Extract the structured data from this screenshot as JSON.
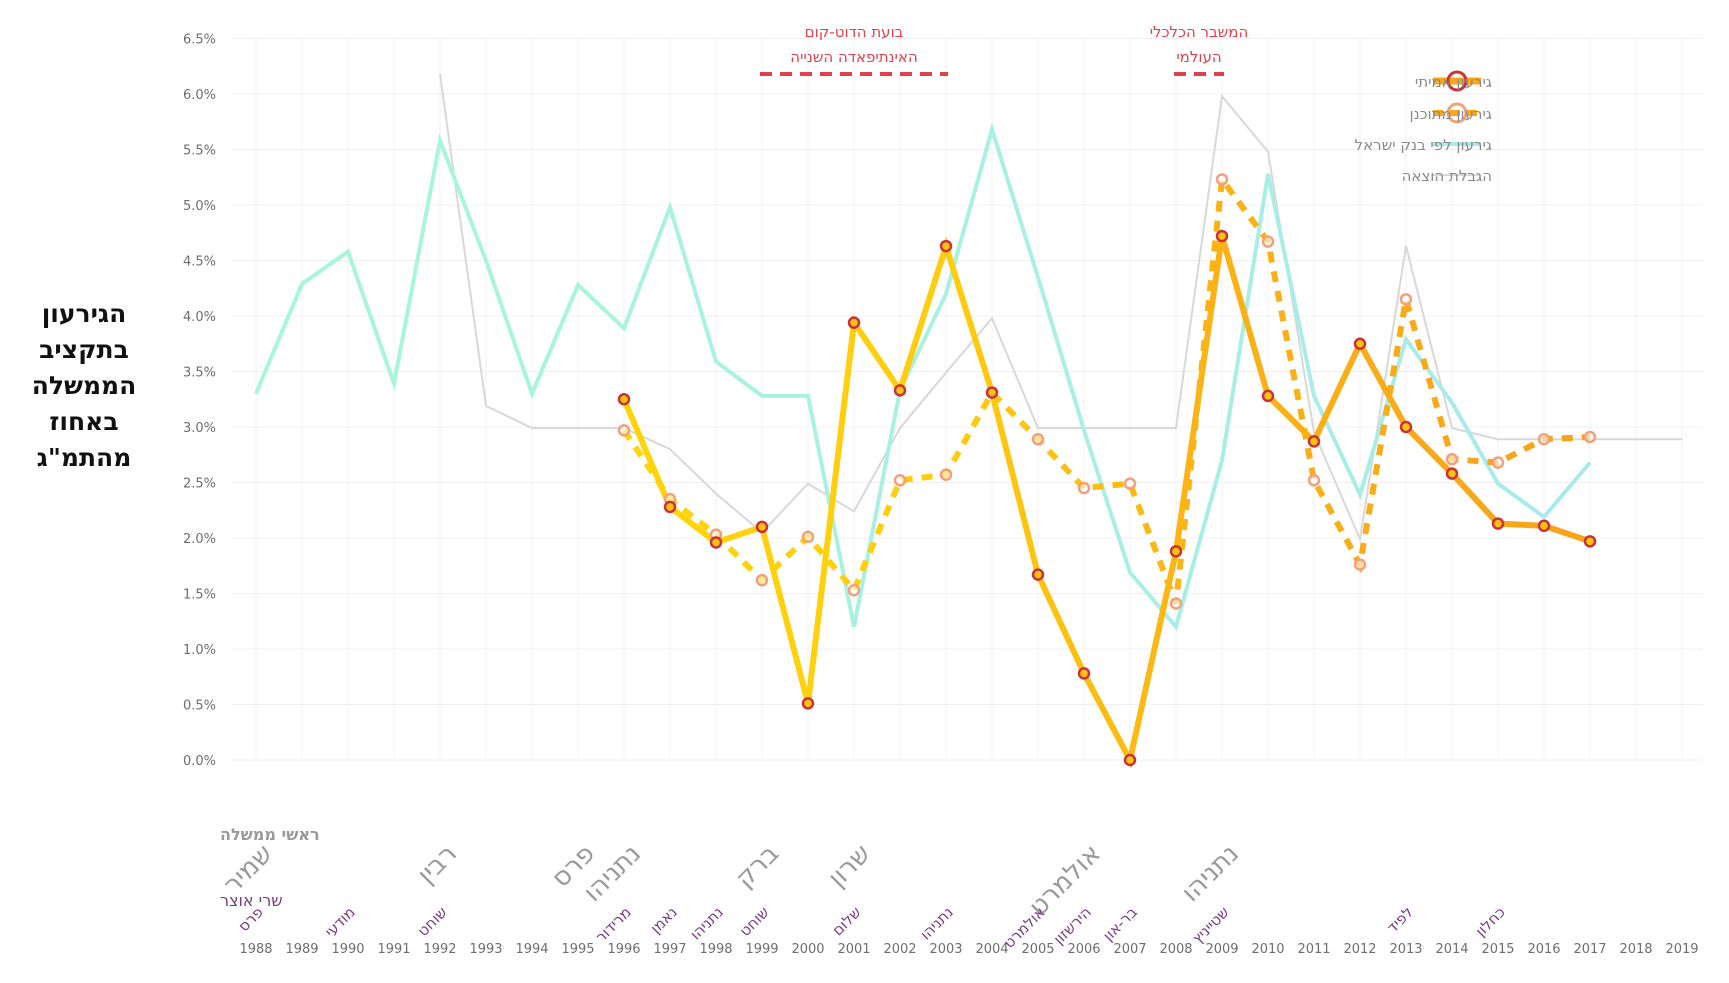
{
  "chart_data": {
    "type": "line",
    "title": "",
    "ylabel": "הגירעון בתקציב הממשלה באחוז מהתמ\"ג",
    "xlabel": "",
    "ylim": [
      0,
      6.5
    ],
    "yticks": [
      "0.0%",
      "0.5%",
      "1.0%",
      "1.5%",
      "2.0%",
      "2.5%",
      "3.0%",
      "3.5%",
      "4.0%",
      "4.5%",
      "5.0%",
      "5.5%",
      "6.0%",
      "6.5%"
    ],
    "ytick_values": [
      0,
      0.5,
      1,
      1.5,
      2,
      2.5,
      3,
      3.5,
      4,
      4.5,
      5,
      5.5,
      6,
      6.5
    ],
    "x": [
      1988,
      1989,
      1990,
      1991,
      1992,
      1993,
      1994,
      1995,
      1996,
      1997,
      1998,
      1999,
      2000,
      2001,
      2002,
      2003,
      2004,
      2005,
      2006,
      2007,
      2008,
      2009,
      2010,
      2011,
      2012,
      2013,
      2014,
      2015,
      2016,
      2017,
      2018,
      2019
    ],
    "grid": true,
    "legend_position": "top-right",
    "series": [
      {
        "name": "גירעון אמיתי",
        "key": "actual",
        "x": [
          1996,
          1997,
          1998,
          1999,
          2000,
          2001,
          2002,
          2003,
          2004,
          2005,
          2006,
          2007,
          2008,
          2009,
          2010,
          2011,
          2012,
          2013,
          2014,
          2015,
          2016,
          2017
        ],
        "values": [
          3.25,
          2.28,
          1.96,
          2.1,
          0.51,
          3.94,
          3.33,
          4.63,
          3.31,
          1.67,
          0.78,
          0.0,
          1.88,
          4.72,
          3.28,
          2.87,
          3.75,
          3.0,
          2.58,
          2.13,
          2.11,
          1.97
        ]
      },
      {
        "name": "גירעון מתוכנן",
        "key": "planned",
        "x": [
          1996,
          1997,
          1998,
          1999,
          2000,
          2001,
          2002,
          2003,
          2004,
          2005,
          2006,
          2007,
          2008,
          2009,
          2010,
          2011,
          2012,
          2013,
          2014,
          2015,
          2016,
          2017
        ],
        "values": [
          2.97,
          2.35,
          2.03,
          1.62,
          2.01,
          1.53,
          2.52,
          2.57,
          3.31,
          2.89,
          2.45,
          2.49,
          1.41,
          5.23,
          4.67,
          2.52,
          1.76,
          4.15,
          2.71,
          2.68,
          2.89,
          2.91
        ]
      },
      {
        "name": "גירעון לפי בנק ישראל",
        "key": "boi",
        "x": [
          1988,
          1989,
          1990,
          1991,
          1992,
          1993,
          1994,
          1995,
          1996,
          1997,
          1998,
          1999,
          2000,
          2001,
          2002,
          2003,
          2004,
          2005,
          2006,
          2007,
          2008,
          2009,
          2010,
          2011,
          2012,
          2013,
          2014,
          2015,
          2016,
          2017
        ],
        "values": [
          3.3,
          4.29,
          4.58,
          3.39,
          5.58,
          4.5,
          3.3,
          4.28,
          3.89,
          4.98,
          3.59,
          3.28,
          3.28,
          1.2,
          3.33,
          4.2,
          5.68,
          4.35,
          2.97,
          1.69,
          1.2,
          2.7,
          5.28,
          3.28,
          2.39,
          3.79,
          3.22,
          2.49,
          2.19,
          2.68
        ]
      },
      {
        "name": "הגבלת הוצאה",
        "key": "limit",
        "x": [
          1992,
          1993,
          1994,
          1995,
          1996,
          1997,
          1998,
          1999,
          2000,
          2001,
          2002,
          2003,
          2004,
          2005,
          2006,
          2007,
          2008,
          2009,
          2010,
          2011,
          2012,
          2013,
          2014,
          2015,
          2016,
          2017,
          2018,
          2019
        ],
        "values": [
          6.18,
          3.19,
          2.99,
          2.99,
          2.99,
          2.8,
          2.4,
          2.05,
          2.49,
          2.24,
          2.99,
          3.49,
          3.98,
          2.99,
          2.99,
          2.99,
          2.99,
          5.98,
          5.48,
          2.95,
          1.99,
          4.63,
          2.99,
          2.89,
          2.89,
          2.89,
          2.89,
          2.89
        ]
      }
    ],
    "annotations": [
      {
        "lines": [
          "בועת הדוט-קום",
          "האינתיפאדה השנייה"
        ],
        "from": 1999,
        "to": 2003
      },
      {
        "lines": [
          "המשבר הכלכלי",
          "העולמי"
        ],
        "from": 2008,
        "to": 2009
      }
    ],
    "prime_ministers_label": "ראשי ממשלה",
    "finance_ministers_label": "שרי אוצר",
    "prime_ministers": [
      {
        "name": "שמיר",
        "year": 1988
      },
      {
        "name": "רבין",
        "year": 1992
      },
      {
        "name": "פרס",
        "year": 1995
      },
      {
        "name": "נתניהו",
        "year": 1996
      },
      {
        "name": "ברק",
        "year": 1999
      },
      {
        "name": "שרון",
        "year": 2001
      },
      {
        "name": "אולמרט",
        "year": 2006
      },
      {
        "name": "נתניהו",
        "year": 2009
      }
    ],
    "finance_ministers": [
      {
        "name": "פרס",
        "year": 1988
      },
      {
        "name": "מודעי",
        "year": 1990
      },
      {
        "name": "שוחט",
        "year": 1992
      },
      {
        "name": "מרידור",
        "year": 1996
      },
      {
        "name": "נאמן",
        "year": 1997
      },
      {
        "name": "נתניהו",
        "year": 1998
      },
      {
        "name": "שוחט",
        "year": 1999
      },
      {
        "name": "שלום",
        "year": 2001
      },
      {
        "name": "נתניהו",
        "year": 2003
      },
      {
        "name": "אולמרט",
        "year": 2005
      },
      {
        "name": "הירשזון",
        "year": 2006
      },
      {
        "name": "בר-און",
        "year": 2007
      },
      {
        "name": "שטייניץ",
        "year": 2009
      },
      {
        "name": "לפיד",
        "year": 2013
      },
      {
        "name": "כחלון",
        "year": 2015
      }
    ]
  },
  "colors": {
    "actual_start": "#FFD60A",
    "actual_end": "#F7A21B",
    "actual_marker": "#C8323A",
    "planned_marker": "#F0A07C",
    "boi_start": "#A8F7D8",
    "boi_end": "#A8ECEA",
    "limit": "#D8D8D8",
    "annotation": "#E2404C",
    "grid": "#F0F0F0"
  }
}
